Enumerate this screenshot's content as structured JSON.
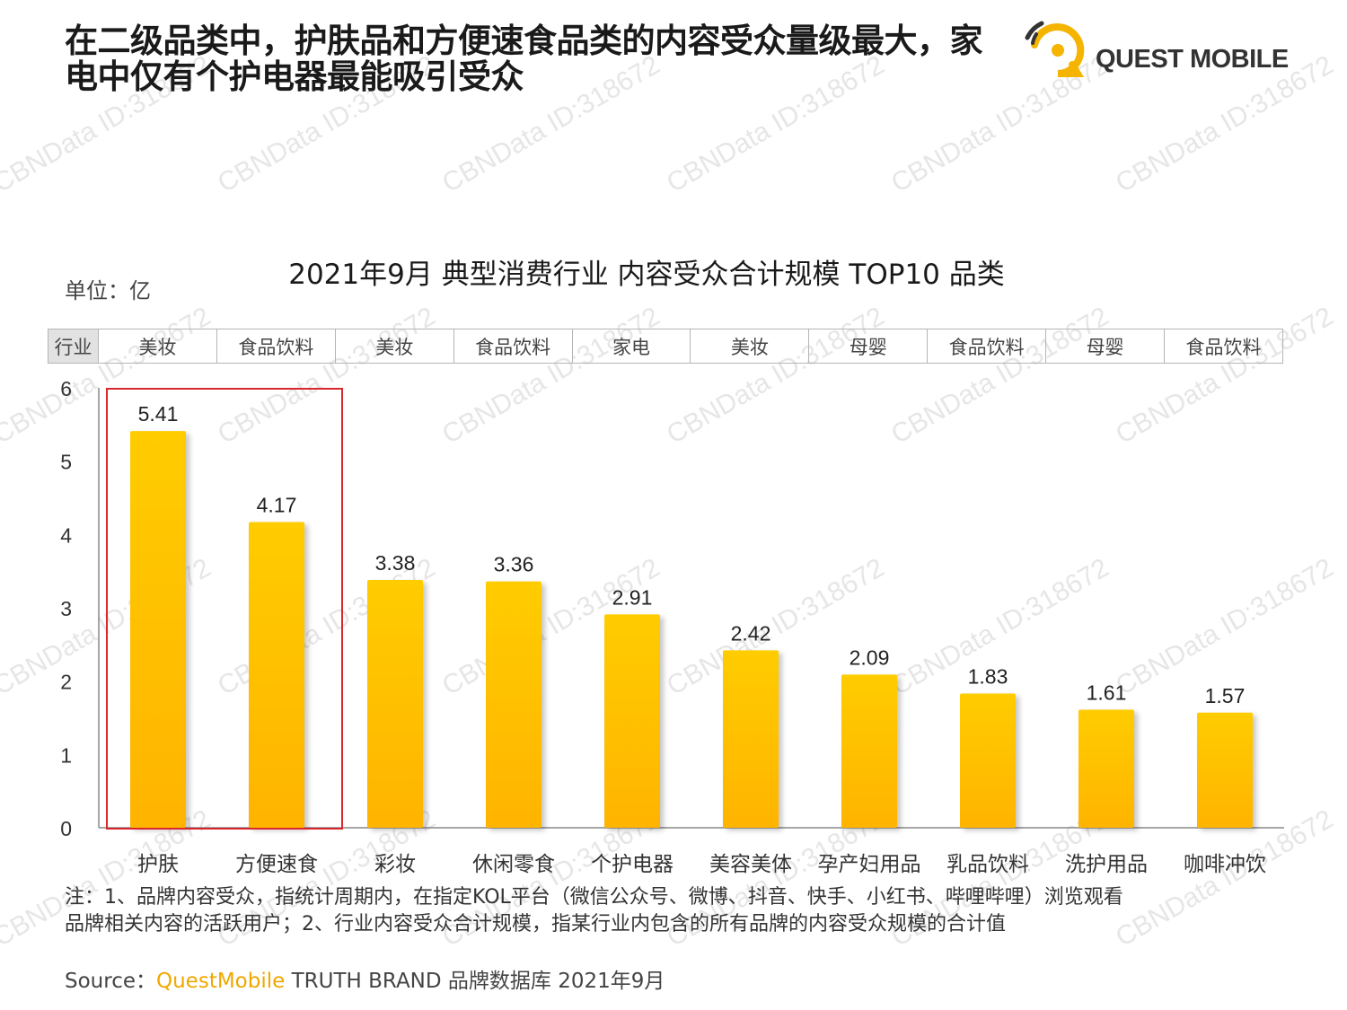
{
  "headline": {
    "line1": "在二级品类中，护肤品和方便速食品类的内容受众量级最大，家",
    "line2": "电中仅有个护电器最能吸引受众"
  },
  "logo": {
    "text": "QUEST MOBILE",
    "icon": "quest-mobile-logo-icon"
  },
  "watermark": "CBNData ID:318672",
  "unit_label": "单位：亿",
  "table": {
    "header": "行业",
    "industries": [
      "美妆",
      "食品饮料",
      "美妆",
      "食品饮料",
      "家电",
      "美妆",
      "母婴",
      "食品饮料",
      "母婴",
      "食品饮料"
    ]
  },
  "chart_data": {
    "type": "bar",
    "title": "2021年9月 典型消费行业 内容受众合计规模 TOP10 品类",
    "categories": [
      "护肤",
      "方便速食",
      "彩妆",
      "休闲零食",
      "个护电器",
      "美容美体",
      "孕产妇用品",
      "乳品饮料",
      "洗护用品",
      "咖啡冲饮"
    ],
    "values": [
      5.41,
      4.17,
      3.38,
      3.36,
      2.91,
      2.42,
      2.09,
      1.83,
      1.61,
      1.57
    ],
    "value_labels": [
      "5.41",
      "4.17",
      "3.38",
      "3.36",
      "2.91",
      "2.42",
      "2.09",
      "1.83",
      "1.61",
      "1.57"
    ],
    "yticks": [
      "0",
      "1",
      "2",
      "3",
      "4",
      "5",
      "6"
    ],
    "ylim": [
      0,
      6
    ],
    "grid": false,
    "highlight_categories": [
      "护肤",
      "方便速食"
    ],
    "colors": {
      "bar_top": "#ffcc00",
      "bar_bottom": "#ffb400",
      "highlight_box": "#d9272e",
      "axis": "#888888"
    }
  },
  "note": {
    "line1": "注：1、品牌内容受众，指统计周期内，在指定KOL平台（微信公众号、微博、抖音、快手、小红书、哔哩哔哩）浏览观看",
    "line2": "品牌相关内容的活跃用户；2、行业内容受众合计规模，指某行业内包含的所有品牌的内容受众规模的合计值"
  },
  "source": {
    "prefix": "Source：",
    "brand": "QuestMobile",
    "suffix": " TRUTH BRAND 品牌数据库 2021年9月"
  }
}
